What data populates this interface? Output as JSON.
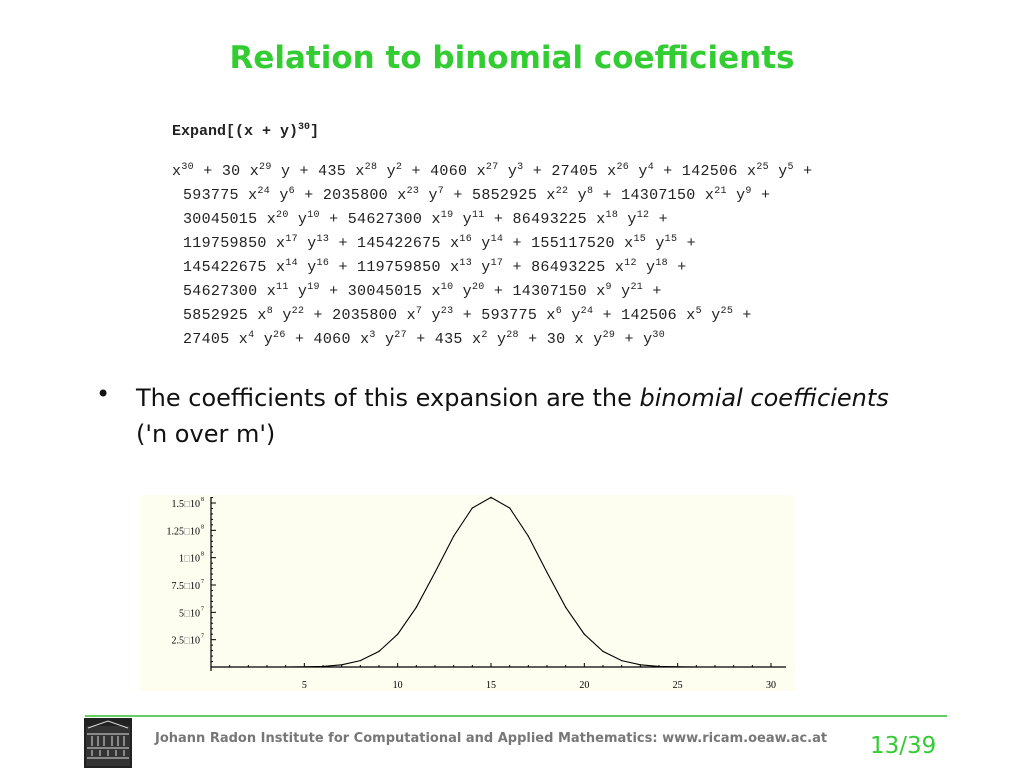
{
  "slide": {
    "title": "Relation to binomial coefficients",
    "command": {
      "text": "Expand[(x + y)",
      "exp": "30",
      "close": "]"
    },
    "expansion_lines": [
      "x^30 + 30 x^29 y + 435 x^28 y^2 + 4060 x^27 y^3 + 27405 x^26 y^4 + 142506 x^25 y^5 +",
      "593775 x^24 y^6 + 2035800 x^23 y^7 + 5852925 x^22 y^8 + 14307150 x^21 y^9 +",
      "30045015 x^20 y^10 + 54627300 x^19 y^11 + 86493225 x^18 y^12 +",
      "119759850 x^17 y^13 + 145422675 x^16 y^14 + 155117520 x^15 y^15 +",
      "145422675 x^14 y^16 + 119759850 x^13 y^17 + 86493225 x^12 y^18 +",
      "54627300 x^11 y^19 + 30045015 x^10 y^20 + 14307150 x^9 y^21 +",
      "5852925 x^8 y^22 + 2035800 x^7 y^23 + 593775 x^6 y^24 + 142506 x^5 y^25 +",
      "27405 x^4 y^26 + 4060 x^3 y^27 + 435 x^2 y^28 + 30 x y^29 + y^30"
    ],
    "bullet": {
      "text_before": "The coefficients of this expansion are the ",
      "italic": "binomial coefficients",
      "text_after": "  ('n over m')"
    }
  },
  "footer": {
    "institute": "Johann Radon Institute for Computational and Applied Mathematics: www.ricam.oeaw.ac.at",
    "page": "13/39",
    "accent_color": "#33cc33"
  },
  "chart_data": {
    "type": "line",
    "x": [
      0,
      1,
      2,
      3,
      4,
      5,
      6,
      7,
      8,
      9,
      10,
      11,
      12,
      13,
      14,
      15,
      16,
      17,
      18,
      19,
      20,
      21,
      22,
      23,
      24,
      25,
      26,
      27,
      28,
      29,
      30
    ],
    "values": [
      1,
      30,
      435,
      4060,
      27405,
      142506,
      593775,
      2035800,
      5852925,
      14307150,
      30045015,
      54627300,
      86493225,
      119759850,
      145422675,
      155117520,
      145422675,
      119759850,
      86493225,
      54627300,
      30045015,
      14307150,
      5852925,
      2035800,
      593775,
      142506,
      27405,
      4060,
      435,
      30,
      1
    ],
    "xlim": [
      0,
      30
    ],
    "ylim": [
      0,
      155117520
    ],
    "x_ticks": [
      "5",
      "10",
      "15",
      "20",
      "25",
      "30"
    ],
    "y_ticks": [
      {
        "mant": "2.5",
        "exp": "7",
        "value": 25000000
      },
      {
        "mant": "5",
        "exp": "7",
        "value": 50000000
      },
      {
        "mant": "7.5",
        "exp": "7",
        "value": 75000000
      },
      {
        "mant": "1",
        "exp": "8",
        "value": 100000000
      },
      {
        "mant": "1.25",
        "exp": "8",
        "value": 125000000
      },
      {
        "mant": "1.5",
        "exp": "8",
        "value": 150000000
      }
    ],
    "background": "#fdfdf0",
    "line_color": "#000000",
    "grid": false
  }
}
